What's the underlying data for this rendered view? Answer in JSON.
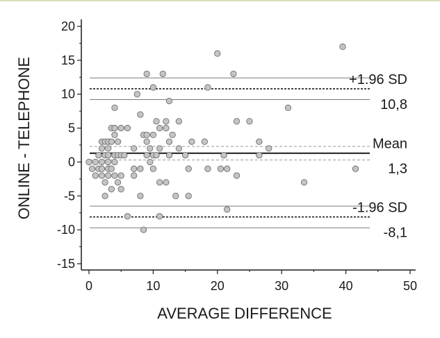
{
  "chart_data": {
    "type": "scatter",
    "title": "",
    "xlabel": "AVERAGE DIFFERENCE",
    "ylabel": "ONLINE - TELEPHONE",
    "xlim": [
      0,
      50
    ],
    "ylim": [
      -15,
      20
    ],
    "x_ticks": [
      0,
      10,
      20,
      30,
      40,
      50
    ],
    "y_ticks": [
      -15,
      -10,
      -5,
      0,
      5,
      10,
      15,
      20
    ],
    "x_tick_labels": [
      "0",
      "10",
      "20",
      "30",
      "40",
      "50"
    ],
    "y_tick_labels": [
      "-15",
      "-10",
      "-5",
      "0",
      "5",
      "10",
      "15",
      "20"
    ],
    "grid": false,
    "reference_lines": {
      "upper_loa": {
        "label": "+1.96 SD",
        "value_label": "10,8",
        "value": 10.8,
        "ci": [
          9.2,
          12.4
        ]
      },
      "mean": {
        "label": "Mean",
        "value_label": "1,3",
        "value": 1.3,
        "ci": [
          0.3,
          2.3
        ]
      },
      "lower_loa": {
        "label": "-1.96 SD",
        "value_label": "-8,1",
        "value": -8.1,
        "ci": [
          -9.7,
          -6.5
        ]
      }
    },
    "points": [
      [
        0,
        0
      ],
      [
        0.5,
        -1
      ],
      [
        1,
        0
      ],
      [
        1,
        -2
      ],
      [
        1.5,
        1
      ],
      [
        1.5,
        -1
      ],
      [
        2,
        3
      ],
      [
        2,
        2
      ],
      [
        2,
        0
      ],
      [
        2,
        -1
      ],
      [
        2,
        -2
      ],
      [
        2.5,
        3
      ],
      [
        2.5,
        1
      ],
      [
        2.5,
        -3
      ],
      [
        2.5,
        -5
      ],
      [
        3,
        3
      ],
      [
        3,
        2
      ],
      [
        3,
        1
      ],
      [
        3,
        0
      ],
      [
        3,
        -1
      ],
      [
        3,
        -2
      ],
      [
        3.5,
        5
      ],
      [
        3.5,
        3
      ],
      [
        3.5,
        -1
      ],
      [
        3.5,
        -4
      ],
      [
        4,
        8
      ],
      [
        4,
        5
      ],
      [
        4,
        4
      ],
      [
        4,
        1
      ],
      [
        4,
        0
      ],
      [
        4,
        -2
      ],
      [
        4.5,
        3
      ],
      [
        4.5,
        1
      ],
      [
        4.5,
        -3
      ],
      [
        5,
        5
      ],
      [
        5,
        1
      ],
      [
        5,
        -2
      ],
      [
        5,
        -4
      ],
      [
        5.5,
        1
      ],
      [
        6,
        5
      ],
      [
        6,
        -8
      ],
      [
        7,
        2
      ],
      [
        7,
        -1
      ],
      [
        7,
        -2
      ],
      [
        7.5,
        10
      ],
      [
        8,
        7
      ],
      [
        8,
        -1
      ],
      [
        8,
        -5
      ],
      [
        8.5,
        4
      ],
      [
        8.5,
        -10
      ],
      [
        9,
        13
      ],
      [
        9,
        4
      ],
      [
        9,
        3
      ],
      [
        9,
        1
      ],
      [
        9.5,
        2
      ],
      [
        9.5,
        0
      ],
      [
        10,
        11
      ],
      [
        10,
        4
      ],
      [
        10,
        1
      ],
      [
        10,
        -1
      ],
      [
        10.5,
        6
      ],
      [
        10.5,
        1
      ],
      [
        11,
        5
      ],
      [
        11,
        2
      ],
      [
        11,
        -3
      ],
      [
        11,
        -8
      ],
      [
        11.5,
        13
      ],
      [
        12,
        6
      ],
      [
        12,
        5
      ],
      [
        12,
        -3
      ],
      [
        12.5,
        9
      ],
      [
        12.5,
        3
      ],
      [
        12.5,
        1
      ],
      [
        13,
        4
      ],
      [
        13.5,
        -5
      ],
      [
        14,
        6
      ],
      [
        14,
        2
      ],
      [
        15,
        1
      ],
      [
        15.5,
        -1
      ],
      [
        15.5,
        -5
      ],
      [
        16,
        3
      ],
      [
        18,
        3
      ],
      [
        18.5,
        11
      ],
      [
        18.5,
        -1
      ],
      [
        20,
        16
      ],
      [
        20.5,
        -1
      ],
      [
        21,
        1
      ],
      [
        21.5,
        -1
      ],
      [
        21.5,
        -7
      ],
      [
        22.5,
        13
      ],
      [
        23,
        6
      ],
      [
        23,
        -2
      ],
      [
        25,
        6
      ],
      [
        26.5,
        3
      ],
      [
        26.5,
        1
      ],
      [
        28,
        2
      ],
      [
        31,
        8
      ],
      [
        33.5,
        -3
      ],
      [
        39.5,
        17
      ],
      [
        41.5,
        -1
      ]
    ]
  }
}
